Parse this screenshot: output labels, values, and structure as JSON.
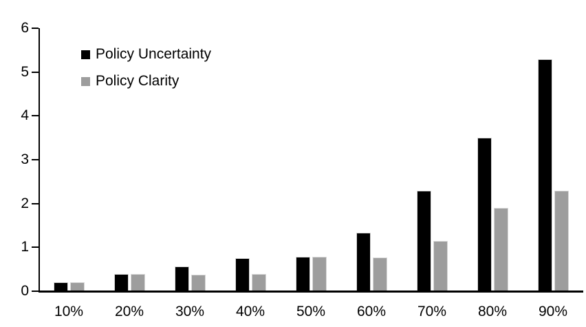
{
  "chart_data": {
    "type": "bar",
    "title": "",
    "xlabel": "",
    "ylabel": "",
    "categories": [
      "10%",
      "20%",
      "30%",
      "40%",
      "50%",
      "60%",
      "70%",
      "80%",
      "90%"
    ],
    "series": [
      {
        "name": "Policy Uncertainty",
        "color": "#000000",
        "values": [
          0.2,
          0.4,
          0.57,
          0.76,
          0.78,
          1.33,
          2.3,
          3.5,
          5.3
        ]
      },
      {
        "name": "Policy Clarity",
        "color": "#9d9d9d",
        "values": [
          0.2,
          0.4,
          0.38,
          0.39,
          0.78,
          0.77,
          1.15,
          1.9,
          2.3
        ]
      }
    ],
    "ylim": [
      0,
      6
    ],
    "yticks": [
      0,
      1,
      2,
      3,
      4,
      5,
      6
    ],
    "grid": false,
    "legend_position": "top-left-inside",
    "axis_color": "#000000",
    "background_color": "#ffffff"
  }
}
